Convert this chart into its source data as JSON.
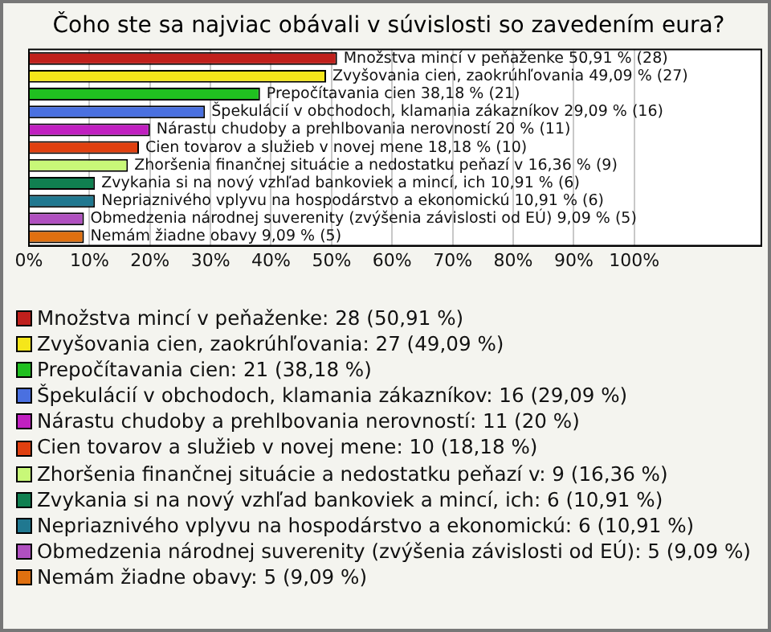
{
  "chart_data": {
    "type": "bar",
    "orientation": "horizontal",
    "stacked": true,
    "title": "Čoho ste sa najviac obávali v súvislosti so zavedením eura?",
    "categories": [
      null,
      null,
      null,
      null,
      null,
      null,
      null,
      null,
      null,
      null,
      null
    ],
    "xlim": [
      0,
      121
    ],
    "xticks": [
      {
        "value": 0,
        "label": "0%"
      },
      {
        "value": 10,
        "label": "10%"
      },
      {
        "value": 20,
        "label": "20%"
      },
      {
        "value": 30,
        "label": "30%"
      },
      {
        "value": 40,
        "label": "40%"
      },
      {
        "value": 50,
        "label": "50%"
      },
      {
        "value": 60,
        "label": "60%"
      },
      {
        "value": 70,
        "label": "70%"
      },
      {
        "value": 80,
        "label": "80%"
      },
      {
        "value": 90,
        "label": "90%"
      },
      {
        "value": 100,
        "label": "100%"
      }
    ],
    "grid": "x",
    "tick_labels": "x",
    "legend": "bottom",
    "series": [
      {
        "name": "Množstva mincí v peňaženke: 28 (50,91 %)",
        "color": "#c0201c",
        "values": [
          50.91,
          null,
          null,
          null,
          null,
          null,
          null,
          null,
          null,
          null,
          null
        ],
        "value_labels": [
          "Množstva mincí v peňaženke 50,91 % (28)",
          null,
          null,
          null,
          null,
          null,
          null,
          null,
          null,
          null,
          null
        ]
      },
      {
        "name": "Zvyšovania cien, zaokrúhľovania: 27 (49,09 %)",
        "color": "#f5e61a",
        "values": [
          null,
          49.09,
          null,
          null,
          null,
          null,
          null,
          null,
          null,
          null,
          null
        ],
        "value_labels": [
          null,
          "Zvyšovania cien, zaokrúhľovania 49,09 % (27)",
          null,
          null,
          null,
          null,
          null,
          null,
          null,
          null,
          null
        ]
      },
      {
        "name": "Prepočítavania cien: 21 (38,18 %)",
        "color": "#20c020",
        "values": [
          null,
          null,
          38.18,
          null,
          null,
          null,
          null,
          null,
          null,
          null,
          null
        ],
        "value_labels": [
          null,
          null,
          "Prepočítavania cien 38,18 % (21)",
          null,
          null,
          null,
          null,
          null,
          null,
          null,
          null
        ]
      },
      {
        "name": "Špekulácií v obchodoch, klamania zákazníkov: 16 (29,09 %)",
        "color": "#4a70e0",
        "values": [
          null,
          null,
          null,
          29.09,
          null,
          null,
          null,
          null,
          null,
          null,
          null
        ],
        "value_labels": [
          null,
          null,
          null,
          "Špekulácií v obchodoch, klamania zákazníkov 29,09 % (16)",
          null,
          null,
          null,
          null,
          null,
          null,
          null
        ]
      },
      {
        "name": "Nárastu chudoby a prehlbovania nerovností: 11 (20 %)",
        "color": "#c020c0",
        "values": [
          null,
          null,
          null,
          null,
          20,
          null,
          null,
          null,
          null,
          null,
          null
        ],
        "value_labels": [
          null,
          null,
          null,
          null,
          "Nárastu chudoby a prehlbovania nerovností 20 % (11)",
          null,
          null,
          null,
          null,
          null,
          null
        ]
      },
      {
        "name": "Cien tovarov a služieb v novej mene: 10 (18,18 %)",
        "color": "#e04010",
        "values": [
          null,
          null,
          null,
          null,
          null,
          18.18,
          null,
          null,
          null,
          null,
          null
        ],
        "value_labels": [
          null,
          null,
          null,
          null,
          null,
          "Cien tovarov a služieb v novej mene 18,18 % (10)",
          null,
          null,
          null,
          null,
          null
        ]
      },
      {
        "name": "Zhoršenia finančnej situácie a nedostatku peňazí v: 9 (16,36 %)",
        "color": "#c8f878",
        "values": [
          null,
          null,
          null,
          null,
          null,
          null,
          16.36,
          null,
          null,
          null,
          null
        ],
        "value_labels": [
          null,
          null,
          null,
          null,
          null,
          null,
          "Zhoršenia finančnej situácie a nedostatku peňazí v 16,36 % (9)",
          null,
          null,
          null,
          null
        ]
      },
      {
        "name": "Zvykania si na nový vzhľad bankoviek a mincí, ich: 6 (10,91 %)",
        "color": "#108050",
        "values": [
          null,
          null,
          null,
          null,
          null,
          null,
          null,
          10.91,
          null,
          null,
          null
        ],
        "value_labels": [
          null,
          null,
          null,
          null,
          null,
          null,
          null,
          "Zvykania si na nový vzhľad bankoviek a mincí, ich 10,91 % (6)",
          null,
          null,
          null
        ]
      },
      {
        "name": "Nepriaznivého vplyvu na hospodárstvo a ekonomickú: 6 (10,91 %)",
        "color": "#207890",
        "values": [
          null,
          null,
          null,
          null,
          null,
          null,
          null,
          null,
          10.91,
          null,
          null
        ],
        "value_labels": [
          null,
          null,
          null,
          null,
          null,
          null,
          null,
          null,
          "Nepriaznivého vplyvu na hospodárstvo a ekonomickú 10,91 % (6)",
          null,
          null
        ]
      },
      {
        "name": "Obmedzenia národnej suverenity (zvýšenia závislosti od EÚ): 5 (9,09 %)",
        "color": "#b050c0",
        "values": [
          null,
          null,
          null,
          null,
          null,
          null,
          null,
          null,
          null,
          9.09,
          null
        ],
        "value_labels": [
          null,
          null,
          null,
          null,
          null,
          null,
          null,
          null,
          null,
          "Obmedzenia národnej suverenity (zvýšenia závislosti od EÚ) 9,09 % (5)",
          null
        ]
      },
      {
        "name": "Nemám žiadne obavy: 5 (9,09 %)",
        "color": "#e07010",
        "values": [
          null,
          null,
          null,
          null,
          null,
          null,
          null,
          null,
          null,
          null,
          9.09
        ],
        "value_labels": [
          null,
          null,
          null,
          null,
          null,
          null,
          null,
          null,
          null,
          null,
          "Nemám žiadne obavy 9,09 % (5)"
        ]
      }
    ]
  }
}
